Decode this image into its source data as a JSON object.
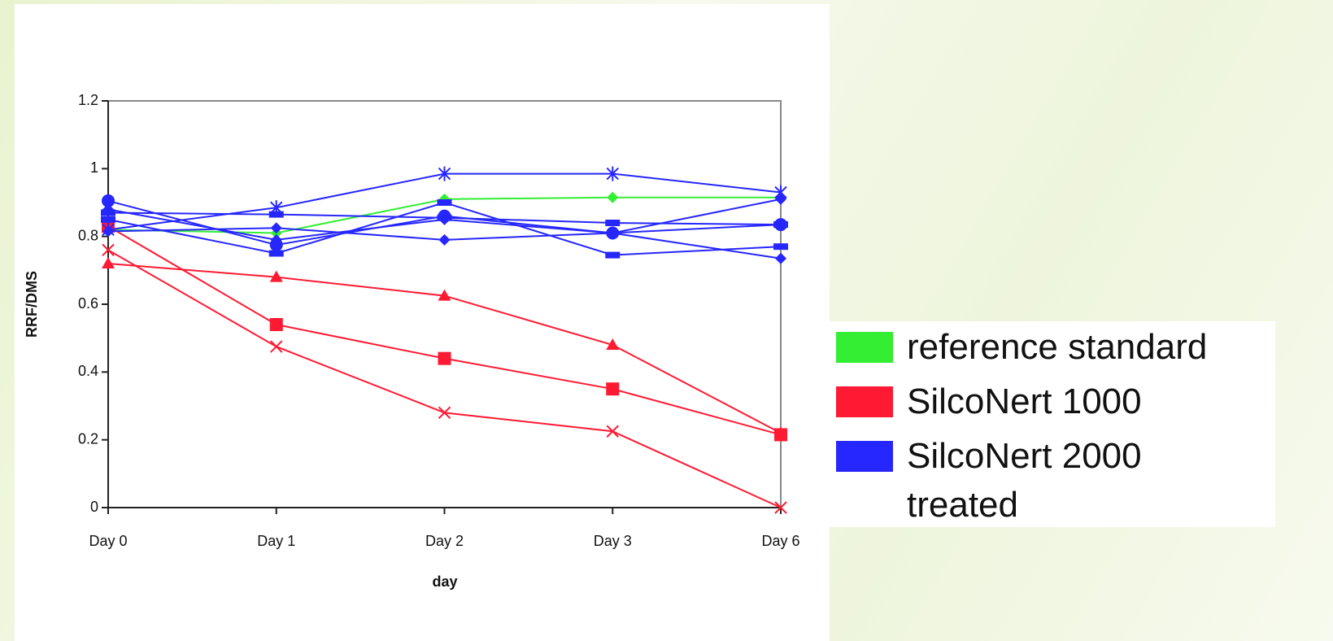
{
  "chart_data": {
    "type": "line",
    "xlabel": "day",
    "ylabel": "RRF/DMS",
    "categories": [
      "Day 0",
      "Day 1",
      "Day 2",
      "Day 3",
      "Day 6"
    ],
    "ylim": [
      0,
      1.2
    ],
    "yticks": [
      0,
      0.2,
      0.4,
      0.6,
      0.8,
      1,
      1.2
    ],
    "series": [
      {
        "name": "reference standard",
        "color": "#33ee33",
        "lines": [
          {
            "marker": "diamond",
            "values": [
              0.82,
              0.81,
              0.91,
              0.915,
              0.915
            ]
          }
        ]
      },
      {
        "name": "SilcoNert 1000",
        "color": "#ff1a33",
        "lines": [
          {
            "marker": "triangle",
            "values": [
              0.72,
              0.68,
              0.625,
              0.48,
              0.22
            ]
          },
          {
            "marker": "square",
            "values": [
              0.83,
              0.54,
              0.44,
              0.35,
              0.215
            ]
          },
          {
            "marker": "cross",
            "values": [
              0.76,
              0.475,
              0.28,
              0.225,
              0
            ]
          }
        ]
      },
      {
        "name": "SilcoNert 2000 treated",
        "color": "#2626ff",
        "lines": [
          {
            "marker": "star",
            "values": [
              0.82,
              0.885,
              0.985,
              0.985,
              0.93
            ]
          },
          {
            "marker": "circle",
            "values": [
              0.905,
              0.775,
              0.86,
              0.81,
              0.835
            ]
          },
          {
            "marker": "diamond",
            "values": [
              0.815,
              0.825,
              0.79,
              0.81,
              0.735
            ]
          },
          {
            "marker": "bar",
            "values": [
              0.87,
              0.865,
              0.855,
              0.84,
              0.835
            ]
          },
          {
            "marker": "bar",
            "values": [
              0.85,
              0.75,
              0.9,
              0.745,
              0.77
            ]
          },
          {
            "marker": "diamond",
            "values": [
              0.88,
              0.79,
              0.85,
              0.81,
              0.91
            ]
          }
        ]
      }
    ]
  }
}
